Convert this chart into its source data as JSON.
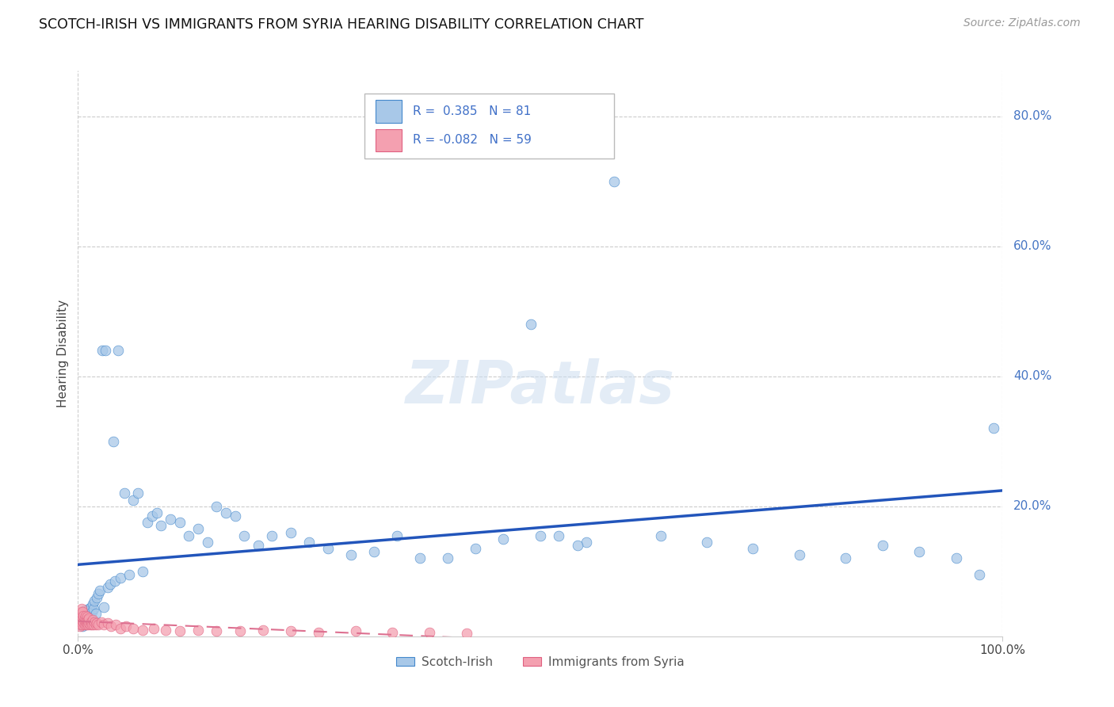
{
  "title": "SCOTCH-IRISH VS IMMIGRANTS FROM SYRIA HEARING DISABILITY CORRELATION CHART",
  "source": "Source: ZipAtlas.com",
  "ylabel": "Hearing Disability",
  "R1": 0.385,
  "N1": 81,
  "R2": -0.082,
  "N2": 59,
  "color_blue": "#a8c8e8",
  "color_pink": "#f4a0b0",
  "edge_blue": "#4488cc",
  "edge_pink": "#e06080",
  "reg_blue": "#2255bb",
  "reg_pink": "#dd7090",
  "watermark": "ZIPatlas",
  "legend_label1": "Scotch-Irish",
  "legend_label2": "Immigrants from Syria",
  "right_ytick_vals": [
    0.2,
    0.4,
    0.6,
    0.8
  ],
  "right_ytick_labels": [
    "20.0%",
    "40.0%",
    "60.0%",
    "80.0%"
  ],
  "xlim": [
    0.0,
    1.0
  ],
  "ylim": [
    0.0,
    0.87
  ],
  "scotch_irish_x": [
    0.002,
    0.003,
    0.004,
    0.005,
    0.005,
    0.006,
    0.006,
    0.007,
    0.008,
    0.008,
    0.009,
    0.01,
    0.01,
    0.011,
    0.012,
    0.013,
    0.013,
    0.014,
    0.015,
    0.016,
    0.017,
    0.018,
    0.019,
    0.02,
    0.022,
    0.024,
    0.026,
    0.028,
    0.03,
    0.032,
    0.035,
    0.038,
    0.04,
    0.043,
    0.046,
    0.05,
    0.055,
    0.06,
    0.065,
    0.07,
    0.075,
    0.08,
    0.085,
    0.09,
    0.1,
    0.11,
    0.12,
    0.13,
    0.14,
    0.15,
    0.16,
    0.17,
    0.18,
    0.195,
    0.21,
    0.23,
    0.25,
    0.27,
    0.295,
    0.32,
    0.345,
    0.37,
    0.4,
    0.43,
    0.46,
    0.49,
    0.52,
    0.55,
    0.58,
    0.63,
    0.68,
    0.73,
    0.78,
    0.83,
    0.87,
    0.91,
    0.95,
    0.975,
    0.99,
    0.5,
    0.54
  ],
  "scotch_irish_y": [
    0.02,
    0.025,
    0.018,
    0.03,
    0.015,
    0.035,
    0.02,
    0.04,
    0.025,
    0.018,
    0.03,
    0.022,
    0.038,
    0.028,
    0.042,
    0.032,
    0.025,
    0.045,
    0.038,
    0.05,
    0.042,
    0.055,
    0.035,
    0.06,
    0.065,
    0.07,
    0.44,
    0.045,
    0.44,
    0.075,
    0.08,
    0.3,
    0.085,
    0.44,
    0.09,
    0.22,
    0.095,
    0.21,
    0.22,
    0.1,
    0.175,
    0.185,
    0.19,
    0.17,
    0.18,
    0.175,
    0.155,
    0.165,
    0.145,
    0.2,
    0.19,
    0.185,
    0.155,
    0.14,
    0.155,
    0.16,
    0.145,
    0.135,
    0.125,
    0.13,
    0.155,
    0.12,
    0.12,
    0.135,
    0.15,
    0.48,
    0.155,
    0.145,
    0.7,
    0.155,
    0.145,
    0.135,
    0.125,
    0.12,
    0.14,
    0.13,
    0.12,
    0.095,
    0.32,
    0.155,
    0.14
  ],
  "syria_x": [
    0.001,
    0.001,
    0.002,
    0.002,
    0.002,
    0.003,
    0.003,
    0.003,
    0.004,
    0.004,
    0.004,
    0.005,
    0.005,
    0.005,
    0.006,
    0.006,
    0.007,
    0.007,
    0.008,
    0.008,
    0.009,
    0.009,
    0.01,
    0.01,
    0.011,
    0.011,
    0.012,
    0.012,
    0.013,
    0.014,
    0.015,
    0.016,
    0.017,
    0.018,
    0.019,
    0.02,
    0.022,
    0.025,
    0.028,
    0.032,
    0.036,
    0.041,
    0.046,
    0.052,
    0.06,
    0.07,
    0.082,
    0.095,
    0.11,
    0.13,
    0.15,
    0.175,
    0.2,
    0.23,
    0.26,
    0.3,
    0.34,
    0.38,
    0.42
  ],
  "syria_y": [
    0.02,
    0.03,
    0.015,
    0.025,
    0.035,
    0.018,
    0.028,
    0.038,
    0.022,
    0.032,
    0.042,
    0.018,
    0.028,
    0.038,
    0.022,
    0.032,
    0.018,
    0.028,
    0.022,
    0.032,
    0.018,
    0.025,
    0.02,
    0.03,
    0.018,
    0.025,
    0.02,
    0.028,
    0.018,
    0.022,
    0.018,
    0.025,
    0.018,
    0.022,
    0.018,
    0.02,
    0.018,
    0.022,
    0.018,
    0.02,
    0.015,
    0.018,
    0.012,
    0.015,
    0.012,
    0.01,
    0.012,
    0.01,
    0.008,
    0.01,
    0.008,
    0.008,
    0.01,
    0.008,
    0.006,
    0.008,
    0.006,
    0.006,
    0.005
  ]
}
